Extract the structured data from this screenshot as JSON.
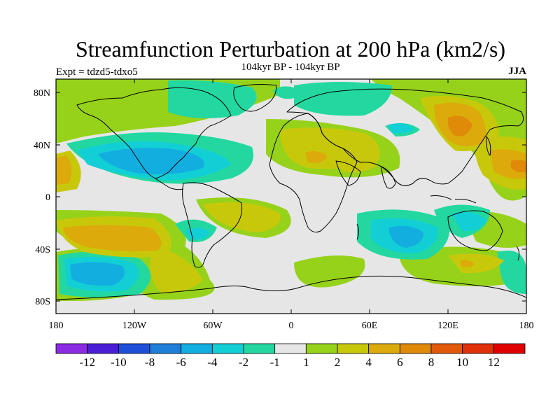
{
  "title": "Streamfunction Perturbation at 200 hPa (km2/s)",
  "subtitle": "104kyr BP - 104kyr BP",
  "left_subtitle": "Expt = tdzd5-tdxo5",
  "right_subtitle": "JJA",
  "lat_labels": [
    "80N",
    "40N",
    "0",
    "40S",
    "80S"
  ],
  "lon_labels": [
    "180",
    "120W",
    "60W",
    "0",
    "60E",
    "120E",
    "180"
  ],
  "colorbar": {
    "labels": [
      "-12",
      "-10",
      "-8",
      "-6",
      "-4",
      "-2",
      "-1",
      "1",
      "2",
      "4",
      "6",
      "8",
      "10",
      "12"
    ],
    "colors": [
      "#8a2be2",
      "#4b1fd6",
      "#1f4ed8",
      "#1f7fd8",
      "#12aee0",
      "#12cfd6",
      "#22d8a0",
      "#e6e6e6",
      "#96d21a",
      "#c8c80a",
      "#dcaa0a",
      "#e08a0a",
      "#e05a0a",
      "#e0300a",
      "#e00000"
    ]
  },
  "palette": {
    "background": "#e6e6e6",
    "light_green": "#96d21a",
    "yellow": "#c8c80a",
    "orange": "#dcaa0a",
    "teal": "#22d8a0",
    "cyan": "#12cfd6",
    "light_blue": "#12aee0",
    "blue": "#1f7fd8"
  }
}
